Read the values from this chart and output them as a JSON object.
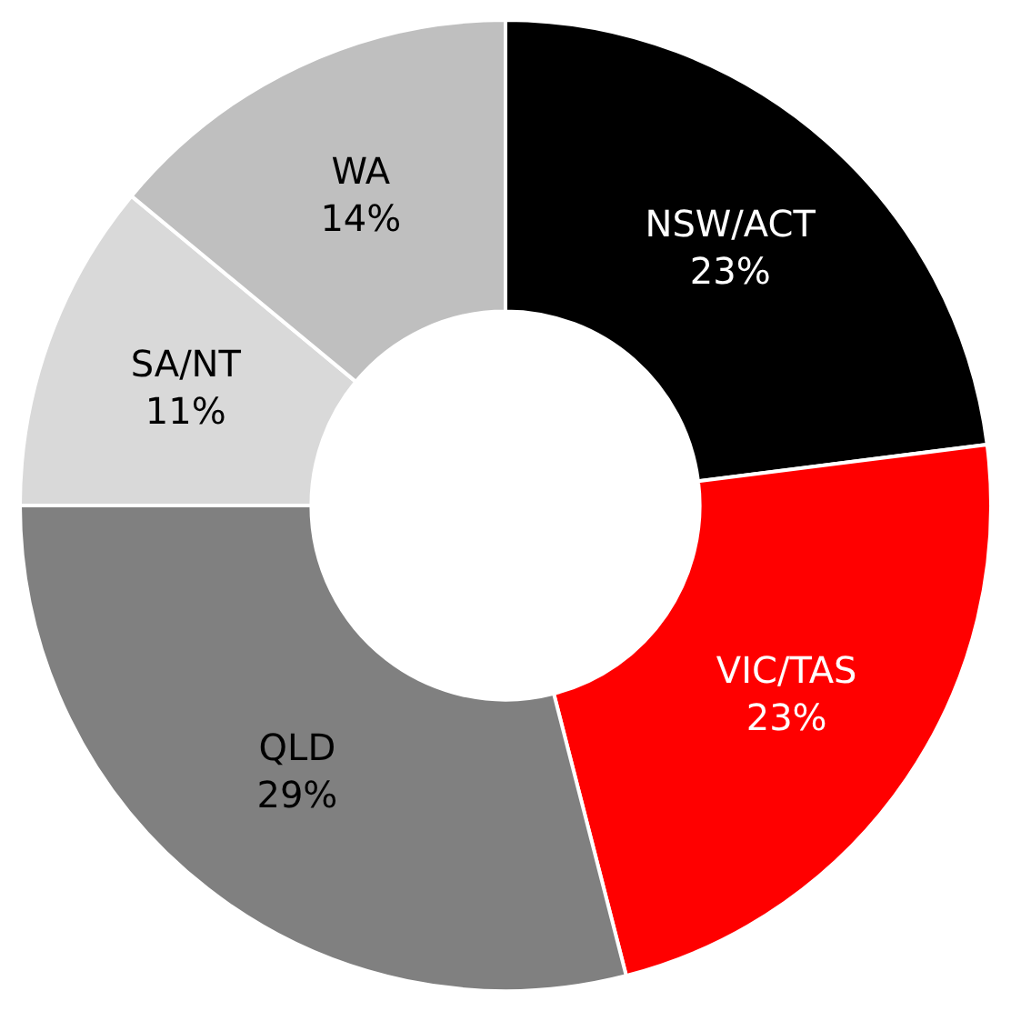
{
  "chart_data": {
    "type": "donut",
    "categories": [
      "NSW/ACT",
      "VIC/TAS",
      "QLD",
      "SA/NT",
      "WA"
    ],
    "values": [
      23,
      23,
      29,
      11,
      14
    ],
    "colors": [
      "#000000",
      "#ff0000",
      "#808080",
      "#d9d9d9",
      "#bfbfbf"
    ],
    "value_labels": [
      "23%",
      "23%",
      "29%",
      "11%",
      "14%"
    ],
    "legend": false
  }
}
